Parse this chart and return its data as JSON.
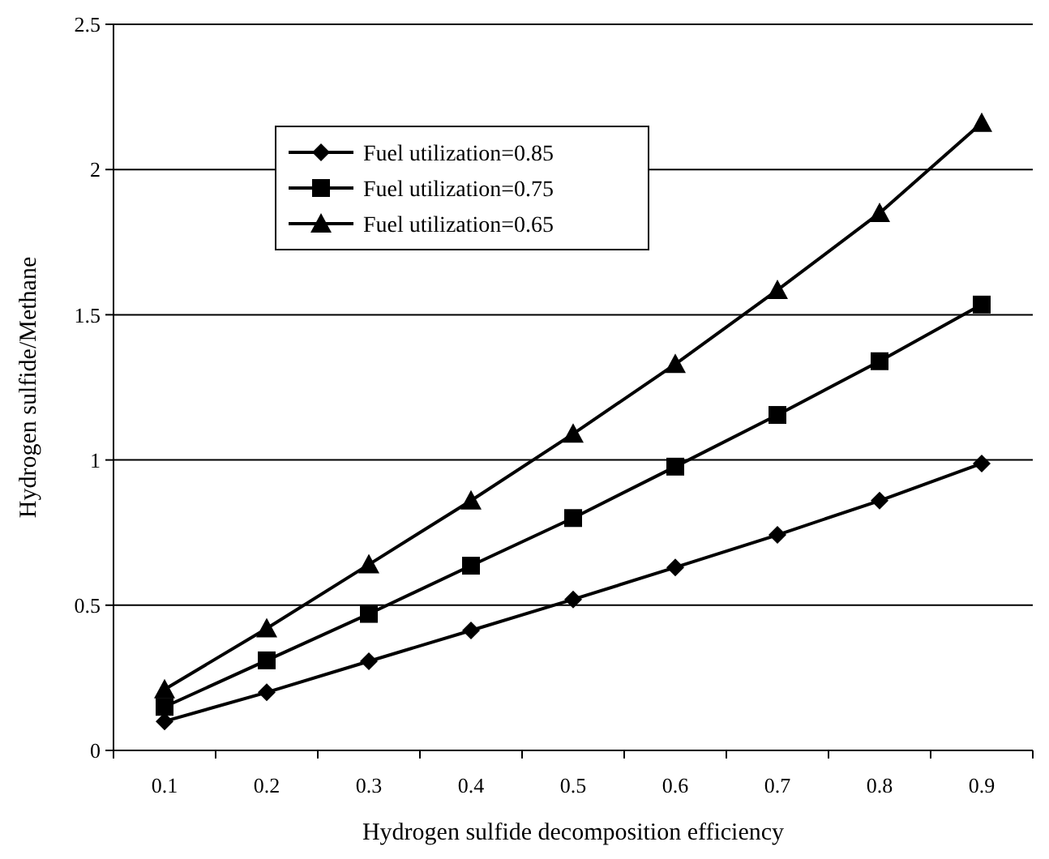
{
  "chart_data": {
    "type": "line",
    "xlabel": "Hydrogen sulfide decomposition efficiency",
    "ylabel": "Hydrogen  sulfide/Methane",
    "categories": [
      "0.1",
      "0.2",
      "0.3",
      "0.4",
      "0.5",
      "0.6",
      "0.7",
      "0.8",
      "0.9"
    ],
    "series": [
      {
        "name": "Fuel utilization=0.85",
        "color": "#000000",
        "marker": "diamond",
        "values": [
          0.1,
          0.2,
          0.307,
          0.413,
          0.52,
          0.63,
          0.742,
          0.86,
          0.988
        ]
      },
      {
        "name": "Fuel utilization=0.75",
        "color": "#000000",
        "marker": "square",
        "values": [
          0.15,
          0.31,
          0.47,
          0.636,
          0.8,
          0.977,
          1.155,
          1.34,
          1.535
        ]
      },
      {
        "name": "Fuel utilization=0.65",
        "color": "#000000",
        "marker": "triangle",
        "values": [
          0.21,
          0.42,
          0.64,
          0.86,
          1.09,
          1.33,
          1.585,
          1.85,
          2.16
        ]
      }
    ],
    "ylim": [
      0,
      2.5
    ],
    "yticks": [
      0,
      0.5,
      1,
      1.5,
      2,
      2.5
    ],
    "grid": "y",
    "legend": "top left",
    "line_style": "solid"
  }
}
